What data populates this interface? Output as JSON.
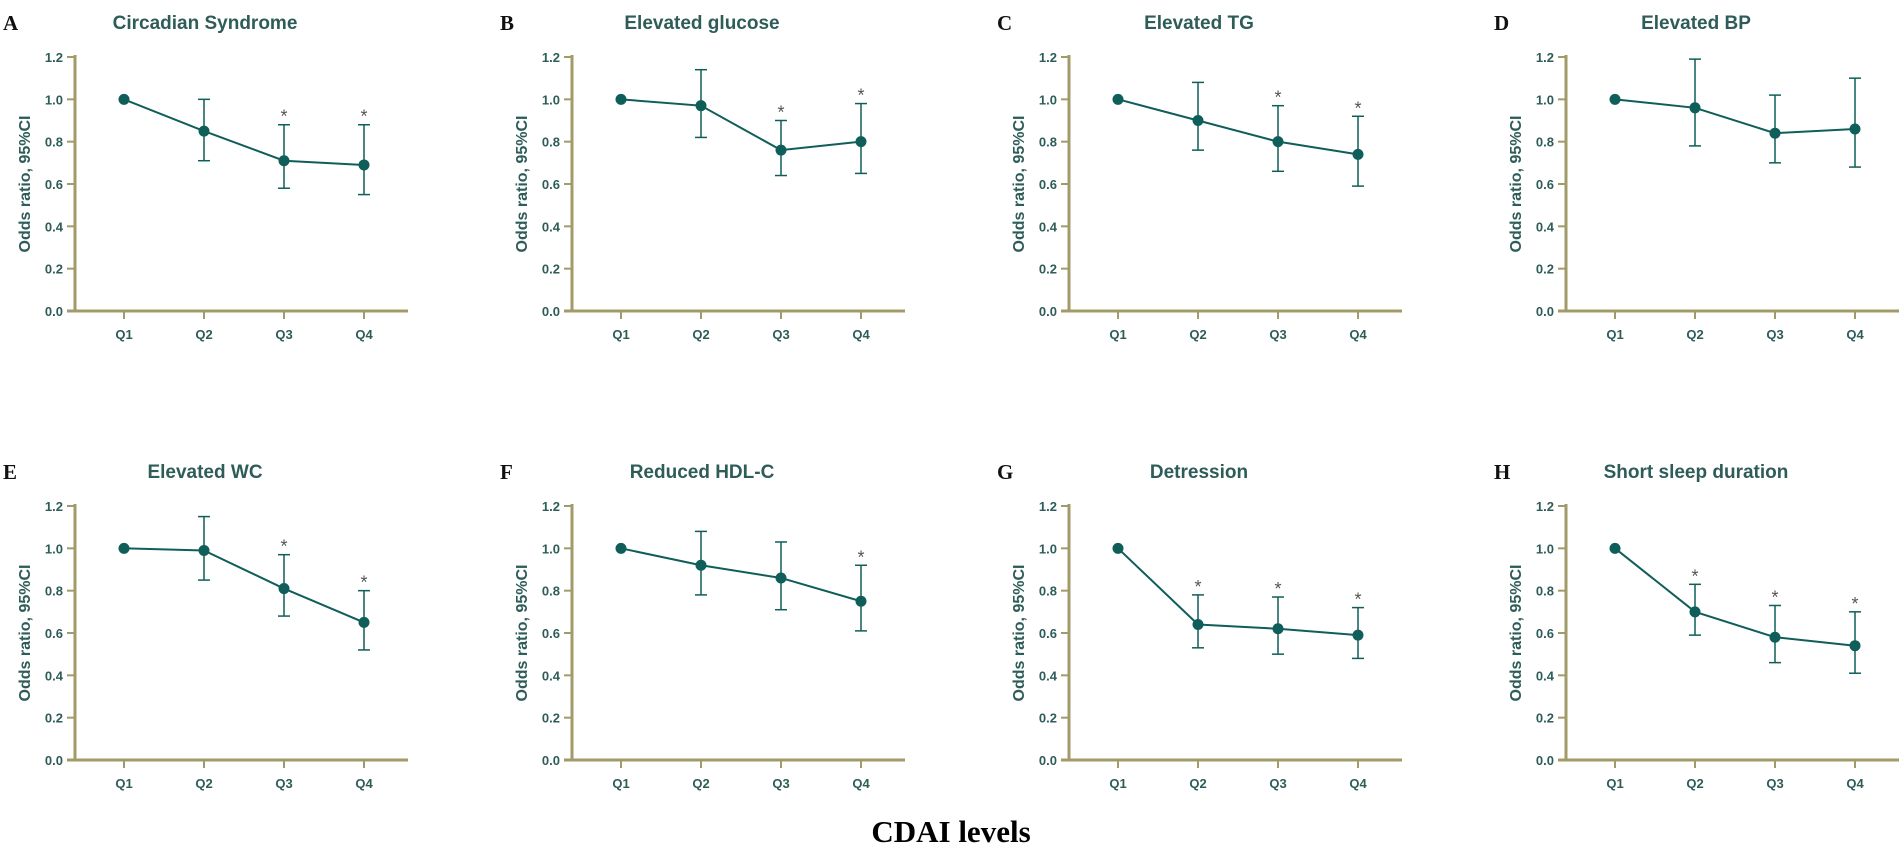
{
  "colors": {
    "axis": "#a39a6a",
    "series": "#0f5e59",
    "text": "#2e5c59",
    "star": "#555555"
  },
  "x_axis_caption": "CDAI levels",
  "chart_data": [
    {
      "letter": "A",
      "type": "line",
      "title": "Circadian Syndrome",
      "ylabel": "Odds ratio, 95%CI",
      "categories": [
        "Q1",
        "Q2",
        "Q3",
        "Q4"
      ],
      "values": [
        1.0,
        0.85,
        0.71,
        0.69
      ],
      "ci_lower": [
        1.0,
        0.71,
        0.58,
        0.55
      ],
      "ci_upper": [
        1.0,
        1.0,
        0.88,
        0.88
      ],
      "significant": [
        false,
        false,
        true,
        true
      ],
      "ylim": [
        0,
        1.2
      ],
      "yticks": [
        "0.0",
        "0.2",
        "0.4",
        "0.6",
        "0.8",
        "1.0",
        "1.2"
      ]
    },
    {
      "letter": "B",
      "type": "line",
      "title": "Elevated glucose",
      "ylabel": "Odds ratio, 95%CI",
      "categories": [
        "Q1",
        "Q2",
        "Q3",
        "Q4"
      ],
      "values": [
        1.0,
        0.97,
        0.76,
        0.8
      ],
      "ci_lower": [
        1.0,
        0.82,
        0.64,
        0.65
      ],
      "ci_upper": [
        1.0,
        1.14,
        0.9,
        0.98
      ],
      "significant": [
        false,
        false,
        true,
        true
      ],
      "ylim": [
        0,
        1.2
      ],
      "yticks": [
        "0.0",
        "0.2",
        "0.4",
        "0.6",
        "0.8",
        "1.0",
        "1.2"
      ]
    },
    {
      "letter": "C",
      "type": "line",
      "title": "Elevated TG",
      "ylabel": "Odds ratio, 95%CI",
      "categories": [
        "Q1",
        "Q2",
        "Q3",
        "Q4"
      ],
      "values": [
        1.0,
        0.9,
        0.8,
        0.74
      ],
      "ci_lower": [
        1.0,
        0.76,
        0.66,
        0.59
      ],
      "ci_upper": [
        1.0,
        1.08,
        0.97,
        0.92
      ],
      "significant": [
        false,
        false,
        true,
        true
      ],
      "ylim": [
        0,
        1.2
      ],
      "yticks": [
        "0.0",
        "0.2",
        "0.4",
        "0.6",
        "0.8",
        "1.0",
        "1.2"
      ]
    },
    {
      "letter": "D",
      "type": "line",
      "title": "Elevated BP",
      "ylabel": "Odds ratio, 95%CI",
      "categories": [
        "Q1",
        "Q2",
        "Q3",
        "Q4"
      ],
      "values": [
        1.0,
        0.96,
        0.84,
        0.86
      ],
      "ci_lower": [
        1.0,
        0.78,
        0.7,
        0.68
      ],
      "ci_upper": [
        1.0,
        1.19,
        1.02,
        1.1
      ],
      "significant": [
        false,
        false,
        false,
        false
      ],
      "ylim": [
        0,
        1.2
      ],
      "yticks": [
        "0.0",
        "0.2",
        "0.4",
        "0.6",
        "0.8",
        "1.0",
        "1.2"
      ]
    },
    {
      "letter": "E",
      "type": "line",
      "title": "Elevated WC",
      "ylabel": "Odds ratio, 95%CI",
      "categories": [
        "Q1",
        "Q2",
        "Q3",
        "Q4"
      ],
      "values": [
        1.0,
        0.99,
        0.81,
        0.65
      ],
      "ci_lower": [
        1.0,
        0.85,
        0.68,
        0.52
      ],
      "ci_upper": [
        1.0,
        1.15,
        0.97,
        0.8
      ],
      "significant": [
        false,
        false,
        true,
        true
      ],
      "ylim": [
        0,
        1.2
      ],
      "yticks": [
        "0.0",
        "0.2",
        "0.4",
        "0.6",
        "0.8",
        "1.0",
        "1.2"
      ]
    },
    {
      "letter": "F",
      "type": "line",
      "title": "Reduced HDL-C",
      "ylabel": "Odds ratio, 95%CI",
      "categories": [
        "Q1",
        "Q2",
        "Q3",
        "Q4"
      ],
      "values": [
        1.0,
        0.92,
        0.86,
        0.75
      ],
      "ci_lower": [
        1.0,
        0.78,
        0.71,
        0.61
      ],
      "ci_upper": [
        1.0,
        1.08,
        1.03,
        0.92
      ],
      "significant": [
        false,
        false,
        false,
        true
      ],
      "ylim": [
        0,
        1.2
      ],
      "yticks": [
        "0.0",
        "0.2",
        "0.4",
        "0.6",
        "0.8",
        "1.0",
        "1.2"
      ]
    },
    {
      "letter": "G",
      "type": "line",
      "title": "Detression",
      "ylabel": "Odds ratio, 95%CI",
      "categories": [
        "Q1",
        "Q2",
        "Q3",
        "Q4"
      ],
      "values": [
        1.0,
        0.64,
        0.62,
        0.59
      ],
      "ci_lower": [
        1.0,
        0.53,
        0.5,
        0.48
      ],
      "ci_upper": [
        1.0,
        0.78,
        0.77,
        0.72
      ],
      "significant": [
        false,
        true,
        true,
        true
      ],
      "ylim": [
        0,
        1.2
      ],
      "yticks": [
        "0.0",
        "0.2",
        "0.4",
        "0.6",
        "0.8",
        "1.0",
        "1.2"
      ]
    },
    {
      "letter": "H",
      "type": "line",
      "title": "Short sleep duration",
      "ylabel": "Odds ratio, 95%CI",
      "categories": [
        "Q1",
        "Q2",
        "Q3",
        "Q4"
      ],
      "values": [
        1.0,
        0.7,
        0.58,
        0.54
      ],
      "ci_lower": [
        1.0,
        0.59,
        0.46,
        0.41
      ],
      "ci_upper": [
        1.0,
        0.83,
        0.73,
        0.7
      ],
      "significant": [
        false,
        true,
        true,
        true
      ],
      "ylim": [
        0,
        1.2
      ],
      "yticks": [
        "0.0",
        "0.2",
        "0.4",
        "0.6",
        "0.8",
        "1.0",
        "1.2"
      ]
    }
  ]
}
